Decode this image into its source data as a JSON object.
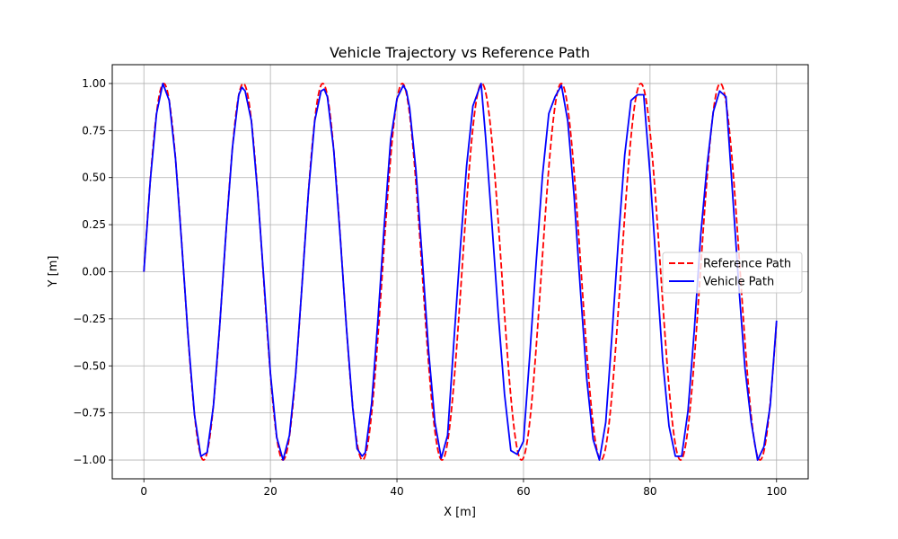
{
  "chart_data": {
    "type": "line",
    "title": "Vehicle Trajectory vs Reference Path",
    "xlabel": "X [m]",
    "ylabel": "Y [m]",
    "xlim": [
      -5,
      105
    ],
    "ylim": [
      -1.1,
      1.1
    ],
    "x_ticks": [
      0,
      20,
      40,
      60,
      80,
      100
    ],
    "x_tick_labels": [
      "0",
      "20",
      "40",
      "60",
      "80",
      "100"
    ],
    "y_ticks": [
      -1.0,
      -0.75,
      -0.5,
      -0.25,
      0.0,
      0.25,
      0.5,
      0.75,
      1.0
    ],
    "y_tick_labels": [
      "−1.00",
      "−0.75",
      "−0.50",
      "−0.25",
      "0.00",
      "0.25",
      "0.50",
      "0.75",
      "1.00"
    ],
    "grid": true,
    "legend_position": "center-right",
    "series": [
      {
        "name": "Reference Path",
        "color": "#ff0000",
        "style": "dashed",
        "function": "y = sin(0.5 * x)",
        "x_range": [
          0,
          100
        ]
      },
      {
        "name": "Vehicle Path",
        "color": "#0000ff",
        "style": "solid",
        "points": [
          [
            0,
            0.0
          ],
          [
            1,
            0.48
          ],
          [
            2,
            0.84
          ],
          [
            3,
            1.0
          ],
          [
            4,
            0.91
          ],
          [
            5,
            0.6
          ],
          [
            6,
            0.14
          ],
          [
            7,
            -0.35
          ],
          [
            8,
            -0.76
          ],
          [
            9,
            -0.98
          ],
          [
            10,
            -0.96
          ],
          [
            11,
            -0.71
          ],
          [
            12,
            -0.28
          ],
          [
            13,
            0.22
          ],
          [
            14,
            0.66
          ],
          [
            15,
            0.94
          ],
          [
            15.5,
            0.98
          ],
          [
            16,
            0.96
          ],
          [
            17,
            0.8
          ],
          [
            18,
            0.41
          ],
          [
            19,
            -0.06
          ],
          [
            20,
            -0.54
          ],
          [
            21,
            -0.88
          ],
          [
            22,
            -1.0
          ],
          [
            23,
            -0.87
          ],
          [
            24,
            -0.54
          ],
          [
            25,
            -0.07
          ],
          [
            26,
            0.42
          ],
          [
            27,
            0.8
          ],
          [
            28,
            0.96
          ],
          [
            28.5,
            0.97
          ],
          [
            29,
            0.93
          ],
          [
            30,
            0.65
          ],
          [
            31,
            0.2
          ],
          [
            32,
            -0.29
          ],
          [
            33,
            -0.72
          ],
          [
            33.7,
            -0.94
          ],
          [
            34.5,
            -0.98
          ],
          [
            35,
            -0.96
          ],
          [
            36,
            -0.7
          ],
          [
            37,
            -0.25
          ],
          [
            38,
            0.25
          ],
          [
            39,
            0.7
          ],
          [
            40,
            0.92
          ],
          [
            41,
            0.99
          ],
          [
            41.5,
            0.96
          ],
          [
            42,
            0.87
          ],
          [
            43,
            0.54
          ],
          [
            44,
            0.07
          ],
          [
            45,
            -0.42
          ],
          [
            46,
            -0.8
          ],
          [
            47,
            -0.99
          ],
          [
            48,
            -0.87
          ],
          [
            49,
            -0.37
          ],
          [
            50,
            0.12
          ],
          [
            51,
            0.56
          ],
          [
            52,
            0.88
          ],
          [
            53.3,
            1.0
          ],
          [
            54,
            0.72
          ],
          [
            55,
            0.26
          ],
          [
            56,
            -0.22
          ],
          [
            57,
            -0.65
          ],
          [
            58,
            -0.95
          ],
          [
            59,
            -0.97
          ],
          [
            60,
            -0.9
          ],
          [
            61,
            -0.44
          ],
          [
            62,
            0.05
          ],
          [
            63,
            0.51
          ],
          [
            64,
            0.84
          ],
          [
            65,
            0.93
          ],
          [
            66,
            0.99
          ],
          [
            67,
            0.8
          ],
          [
            68,
            0.4
          ],
          [
            69,
            -0.1
          ],
          [
            70,
            -0.57
          ],
          [
            71,
            -0.89
          ],
          [
            72,
            -1.0
          ],
          [
            73,
            -0.8
          ],
          [
            74,
            -0.33
          ],
          [
            75,
            0.17
          ],
          [
            76,
            0.62
          ],
          [
            77,
            0.91
          ],
          [
            78,
            0.94
          ],
          [
            79,
            0.94
          ],
          [
            80,
            0.52
          ],
          [
            81,
            0.02
          ],
          [
            82,
            -0.47
          ],
          [
            83,
            -0.82
          ],
          [
            84,
            -0.98
          ],
          [
            85,
            -0.98
          ],
          [
            86,
            -0.74
          ],
          [
            87,
            -0.31
          ],
          [
            88,
            0.19
          ],
          [
            89,
            0.56
          ],
          [
            90,
            0.85
          ],
          [
            91,
            0.96
          ],
          [
            92,
            0.93
          ],
          [
            93,
            0.44
          ],
          [
            94,
            -0.06
          ],
          [
            95,
            -0.51
          ],
          [
            96,
            -0.8
          ],
          [
            97,
            -1.0
          ],
          [
            98,
            -0.93
          ],
          [
            99,
            -0.71
          ],
          [
            100,
            -0.26
          ]
        ]
      }
    ]
  }
}
